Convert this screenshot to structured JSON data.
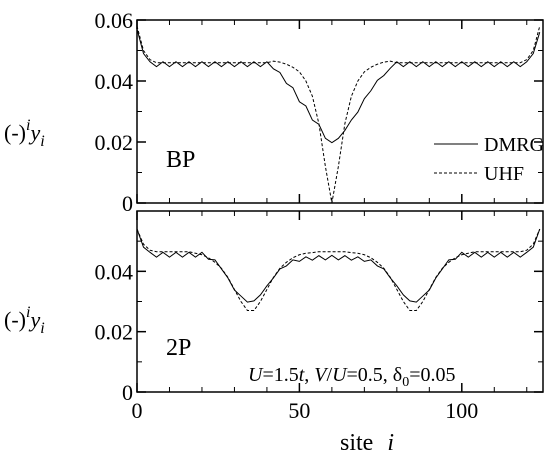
{
  "chart_data": [
    {
      "type": "line",
      "panel_label": "BP",
      "xlim": [
        0,
        125
      ],
      "ylim": [
        0,
        0.06
      ],
      "xticks": [
        0,
        50,
        100
      ],
      "xminorticks": [
        10,
        20,
        30,
        40,
        60,
        70,
        80,
        90,
        110,
        120
      ],
      "yticks": [
        0,
        0.02,
        0.04,
        0.06
      ],
      "yminorticks": [
        0.01,
        0.03,
        0.05
      ],
      "ylabel": {
        "prefix": "(-)",
        "sup": "i",
        "var": "y",
        "sub": "i"
      },
      "legend": "right",
      "x": [
        0,
        2,
        4,
        6,
        8,
        10,
        12,
        14,
        16,
        18,
        20,
        22,
        24,
        26,
        28,
        30,
        32,
        34,
        36,
        38,
        40,
        42,
        44,
        46,
        48,
        50,
        52,
        54,
        56,
        58,
        60,
        62,
        64,
        66,
        68,
        70,
        72,
        74,
        76,
        78,
        80,
        82,
        84,
        86,
        88,
        90,
        92,
        94,
        96,
        98,
        100,
        102,
        104,
        106,
        108,
        110,
        112,
        114,
        116,
        118,
        120,
        122,
        124
      ],
      "series": [
        {
          "name": "DMRG",
          "color": "#000000",
          "linestyle": "solid",
          "values": [
            0.057,
            0.049,
            0.0463,
            0.0447,
            0.0463,
            0.0447,
            0.0463,
            0.0447,
            0.0463,
            0.0447,
            0.0463,
            0.0447,
            0.0463,
            0.0447,
            0.0463,
            0.0447,
            0.0463,
            0.0447,
            0.0463,
            0.0447,
            0.0463,
            0.044,
            0.0428,
            0.0392,
            0.0378,
            0.0332,
            0.0318,
            0.0272,
            0.0258,
            0.0212,
            0.0198,
            0.0212,
            0.0238,
            0.0272,
            0.0298,
            0.0342,
            0.0368,
            0.0402,
            0.0418,
            0.0442,
            0.0463,
            0.0447,
            0.0463,
            0.0447,
            0.0463,
            0.0447,
            0.0463,
            0.0447,
            0.0463,
            0.0447,
            0.0463,
            0.0447,
            0.0463,
            0.0447,
            0.0463,
            0.0447,
            0.0463,
            0.0447,
            0.0463,
            0.0447,
            0.0463,
            0.049,
            0.056
          ]
        },
        {
          "name": "UHF",
          "color": "#000000",
          "linestyle": "dashed",
          "values": [
            0.058,
            0.05,
            0.047,
            0.046,
            0.046,
            0.046,
            0.046,
            0.046,
            0.046,
            0.046,
            0.046,
            0.046,
            0.046,
            0.046,
            0.046,
            0.046,
            0.046,
            0.046,
            0.046,
            0.046,
            0.046,
            0.0465,
            0.0462,
            0.0455,
            0.0445,
            0.043,
            0.04,
            0.035,
            0.026,
            0.012,
            0,
            0.012,
            0.026,
            0.035,
            0.04,
            0.043,
            0.0445,
            0.0455,
            0.0462,
            0.0465,
            0.046,
            0.046,
            0.046,
            0.046,
            0.046,
            0.046,
            0.046,
            0.046,
            0.046,
            0.046,
            0.046,
            0.046,
            0.046,
            0.046,
            0.046,
            0.046,
            0.046,
            0.046,
            0.046,
            0.046,
            0.047,
            0.05,
            0.058
          ]
        }
      ]
    },
    {
      "type": "line",
      "panel_label": "2P",
      "xlim": [
        0,
        125
      ],
      "ylim": [
        0,
        0.06
      ],
      "xticks": [
        0,
        50,
        100
      ],
      "xminorticks": [
        10,
        20,
        30,
        40,
        60,
        70,
        80,
        90,
        110,
        120
      ],
      "yticks": [
        0,
        0.02,
        0.04
      ],
      "yminorticks": [
        0.01,
        0.03,
        0.05
      ],
      "ylabel": {
        "prefix": "(-)",
        "sup": "i",
        "var": "y",
        "sub": "i"
      },
      "xlabel": {
        "word": "site",
        "var": "i"
      },
      "annotation": [
        "U",
        "=1.5",
        "t",
        ", ",
        "V",
        "/",
        "U",
        "=0.5, δ",
        "0",
        "=0.05"
      ],
      "x": [
        0,
        2,
        4,
        6,
        8,
        10,
        12,
        14,
        16,
        18,
        20,
        22,
        24,
        26,
        28,
        30,
        32,
        34,
        36,
        38,
        40,
        42,
        44,
        46,
        48,
        50,
        52,
        54,
        56,
        58,
        60,
        62,
        64,
        66,
        68,
        70,
        72,
        74,
        76,
        78,
        80,
        82,
        84,
        86,
        88,
        90,
        92,
        94,
        96,
        98,
        100,
        102,
        104,
        106,
        108,
        110,
        112,
        114,
        116,
        118,
        120,
        122,
        124
      ],
      "series": [
        {
          "name": "DMRG",
          "color": "#000000",
          "linestyle": "solid",
          "values": [
            0.054,
            0.048,
            0.0463,
            0.0447,
            0.0463,
            0.0447,
            0.0463,
            0.0447,
            0.0463,
            0.0447,
            0.0463,
            0.044,
            0.0438,
            0.0408,
            0.0378,
            0.0338,
            0.0318,
            0.0298,
            0.0302,
            0.0322,
            0.0352,
            0.0378,
            0.0408,
            0.0418,
            0.0438,
            0.0433,
            0.0448,
            0.0437,
            0.0452,
            0.0438,
            0.0453,
            0.0438,
            0.0452,
            0.0437,
            0.0448,
            0.0433,
            0.0438,
            0.0418,
            0.0408,
            0.0378,
            0.0352,
            0.0322,
            0.0302,
            0.0298,
            0.0318,
            0.0338,
            0.0378,
            0.0408,
            0.0438,
            0.044,
            0.0463,
            0.0447,
            0.0463,
            0.0447,
            0.0463,
            0.0447,
            0.0463,
            0.0447,
            0.0463,
            0.0447,
            0.0463,
            0.048,
            0.054
          ]
        },
        {
          "name": "UHF",
          "color": "#000000",
          "linestyle": "dashed",
          "values": [
            0.054,
            0.049,
            0.047,
            0.0465,
            0.0465,
            0.0465,
            0.0465,
            0.0465,
            0.0465,
            0.046,
            0.0455,
            0.0445,
            0.043,
            0.041,
            0.038,
            0.034,
            0.03,
            0.027,
            0.027,
            0.03,
            0.034,
            0.038,
            0.041,
            0.043,
            0.0445,
            0.0455,
            0.046,
            0.0462,
            0.0465,
            0.0465,
            0.0465,
            0.0465,
            0.0465,
            0.0462,
            0.046,
            0.0455,
            0.0445,
            0.043,
            0.041,
            0.038,
            0.034,
            0.03,
            0.027,
            0.027,
            0.03,
            0.034,
            0.038,
            0.041,
            0.043,
            0.0445,
            0.0455,
            0.046,
            0.0465,
            0.0465,
            0.0465,
            0.0465,
            0.0465,
            0.0465,
            0.0465,
            0.0465,
            0.047,
            0.049,
            0.054
          ]
        }
      ]
    }
  ]
}
